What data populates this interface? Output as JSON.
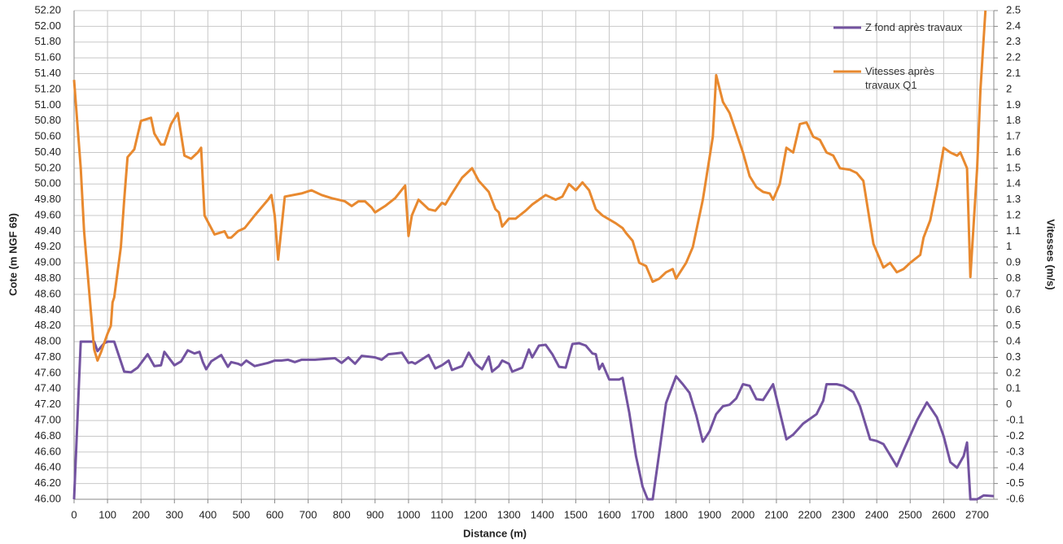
{
  "chart_data": {
    "type": "line",
    "xlabel": "Distance (m)",
    "ylabel": "Cote (m NGF 69)",
    "y2label": "Vitesses (m/s)",
    "xlim": [
      0,
      2750
    ],
    "xticks": [
      0,
      100,
      200,
      300,
      400,
      500,
      600,
      700,
      800,
      900,
      1000,
      1100,
      1200,
      1300,
      1400,
      1500,
      1600,
      1700,
      1800,
      1900,
      2000,
      2100,
      2200,
      2300,
      2400,
      2500,
      2600,
      2700
    ],
    "ylim": [
      46,
      52.2
    ],
    "yticks": [
      {
        "value": 46,
        "label": "46.00"
      },
      {
        "value": 46.2,
        "label": "46.20"
      },
      {
        "value": 46.4,
        "label": "46.40"
      },
      {
        "value": 46.6,
        "label": "46.60"
      },
      {
        "value": 46.8,
        "label": "46.80"
      },
      {
        "value": 47,
        "label": "47.00"
      },
      {
        "value": 47.2,
        "label": "47.20"
      },
      {
        "value": 47.4,
        "label": "47.40"
      },
      {
        "value": 47.6,
        "label": "47.60"
      },
      {
        "value": 47.8,
        "label": "47.80"
      },
      {
        "value": 48,
        "label": "48.00"
      },
      {
        "value": 48.2,
        "label": "48.20"
      },
      {
        "value": 48.4,
        "label": "48.40"
      },
      {
        "value": 48.6,
        "label": "48.60"
      },
      {
        "value": 48.8,
        "label": "48.80"
      },
      {
        "value": 49,
        "label": "49.00"
      },
      {
        "value": 49.2,
        "label": "49.20"
      },
      {
        "value": 49.4,
        "label": "49.40"
      },
      {
        "value": 49.6,
        "label": "49.60"
      },
      {
        "value": 49.8,
        "label": "49.80"
      },
      {
        "value": 50,
        "label": "50.00"
      },
      {
        "value": 50.2,
        "label": "50.20"
      },
      {
        "value": 50.4,
        "label": "50.40"
      },
      {
        "value": 50.6,
        "label": "50.60"
      },
      {
        "value": 50.8,
        "label": "50.80"
      },
      {
        "value": 51,
        "label": "51.00"
      },
      {
        "value": 51.2,
        "label": "51.20"
      },
      {
        "value": 51.4,
        "label": "51.40"
      },
      {
        "value": 51.6,
        "label": "51.60"
      },
      {
        "value": 51.8,
        "label": "51.80"
      },
      {
        "value": 52,
        "label": "52.00"
      },
      {
        "value": 52.2,
        "label": "52.20"
      }
    ],
    "y2lim": [
      -0.6,
      2.5
    ],
    "y2ticks": [
      -0.6,
      -0.5,
      -0.4,
      -0.3,
      -0.2,
      -0.1,
      0,
      0.1,
      0.2,
      0.3,
      0.4,
      0.5,
      0.6,
      0.7,
      0.8,
      0.9,
      1,
      1.1,
      1.2,
      1.3,
      1.4,
      1.5,
      1.6,
      1.7,
      1.8,
      1.9,
      2,
      2.1,
      2.2,
      2.3,
      2.4,
      2.5
    ],
    "grid": true,
    "series": [
      {
        "name": "Z fond après travaux",
        "color": "#7353a0",
        "axis": "y",
        "x": [
          0,
          20,
          60,
          70,
          90,
          100,
          120,
          150,
          170,
          190,
          220,
          240,
          260,
          270,
          300,
          320,
          340,
          360,
          375,
          385,
          395,
          410,
          440,
          460,
          470,
          490,
          500,
          515,
          540,
          580,
          600,
          620,
          640,
          660,
          680,
          720,
          780,
          800,
          820,
          840,
          860,
          900,
          920,
          940,
          960,
          980,
          1000,
          1010,
          1020,
          1060,
          1080,
          1100,
          1120,
          1130,
          1160,
          1180,
          1200,
          1220,
          1240,
          1250,
          1270,
          1280,
          1300,
          1310,
          1340,
          1360,
          1370,
          1390,
          1410,
          1430,
          1450,
          1470,
          1490,
          1510,
          1530,
          1550,
          1560,
          1570,
          1580,
          1600,
          1630,
          1640,
          1660,
          1680,
          1700,
          1715,
          1730,
          1750,
          1770,
          1800,
          1820,
          1840,
          1860,
          1880,
          1900,
          1920,
          1940,
          1960,
          1980,
          2000,
          2020,
          2040,
          2060,
          2090,
          2130,
          2150,
          2180,
          2200,
          2220,
          2240,
          2250,
          2280,
          2300,
          2330,
          2350,
          2380,
          2400,
          2420,
          2460,
          2480,
          2520,
          2550,
          2580,
          2600,
          2620,
          2640,
          2660,
          2670,
          2680,
          2700,
          2720,
          2750
        ],
        "values": [
          46.0,
          48.0,
          48.0,
          47.88,
          47.98,
          48.0,
          48.0,
          47.62,
          47.61,
          47.67,
          47.84,
          47.69,
          47.7,
          47.87,
          47.7,
          47.75,
          47.89,
          47.85,
          47.87,
          47.74,
          47.65,
          47.75,
          47.83,
          47.68,
          47.74,
          47.72,
          47.7,
          47.76,
          47.69,
          47.73,
          47.76,
          47.76,
          47.77,
          47.74,
          47.77,
          47.77,
          47.79,
          47.73,
          47.8,
          47.72,
          47.82,
          47.8,
          47.77,
          47.84,
          47.85,
          47.86,
          47.73,
          47.74,
          47.72,
          47.83,
          47.66,
          47.7,
          47.76,
          47.64,
          47.69,
          47.86,
          47.72,
          47.65,
          47.81,
          47.62,
          47.69,
          47.76,
          47.72,
          47.62,
          47.67,
          47.9,
          47.8,
          47.95,
          47.96,
          47.84,
          47.68,
          47.67,
          47.97,
          47.98,
          47.95,
          47.85,
          47.84,
          47.65,
          47.72,
          47.52,
          47.52,
          47.54,
          47.1,
          46.55,
          46.16,
          46.0,
          46.0,
          46.6,
          47.22,
          47.56,
          47.46,
          47.35,
          47.07,
          46.73,
          46.86,
          47.08,
          47.18,
          47.2,
          47.28,
          47.46,
          47.44,
          47.27,
          47.26,
          47.46,
          46.76,
          46.82,
          46.96,
          47.02,
          47.08,
          47.25,
          47.46,
          47.46,
          47.44,
          47.36,
          47.18,
          46.76,
          46.74,
          46.7,
          46.42,
          46.62,
          47.0,
          47.23,
          47.04,
          46.8,
          46.47,
          46.4,
          46.55,
          46.72,
          46.0,
          46.0,
          46.05,
          46.04
        ]
      },
      {
        "name": "Vitesses après travaux Q1",
        "color": "#e8892f",
        "axis": "y2",
        "x": [
          0,
          20,
          30,
          50,
          60,
          70,
          80,
          100,
          110,
          115,
          120,
          140,
          150,
          160,
          180,
          200,
          230,
          240,
          260,
          270,
          290,
          310,
          330,
          350,
          370,
          380,
          390,
          420,
          450,
          460,
          470,
          490,
          510,
          540,
          580,
          590,
          600,
          610,
          630,
          680,
          710,
          740,
          770,
          810,
          830,
          850,
          870,
          890,
          900,
          930,
          960,
          990,
          1000,
          1010,
          1030,
          1060,
          1080,
          1100,
          1110,
          1130,
          1160,
          1190,
          1210,
          1240,
          1260,
          1270,
          1280,
          1300,
          1320,
          1350,
          1370,
          1390,
          1410,
          1440,
          1460,
          1480,
          1500,
          1520,
          1540,
          1560,
          1580,
          1620,
          1640,
          1650,
          1670,
          1690,
          1710,
          1730,
          1750,
          1770,
          1790,
          1800,
          1830,
          1850,
          1880,
          1910,
          1920,
          1940,
          1960,
          2000,
          2020,
          2040,
          2060,
          2080,
          2090,
          2110,
          2130,
          2150,
          2170,
          2190,
          2210,
          2230,
          2250,
          2270,
          2290,
          2320,
          2340,
          2360,
          2390,
          2420,
          2440,
          2460,
          2480,
          2500,
          2530,
          2540,
          2560,
          2580,
          2600,
          2620,
          2640,
          2650,
          2670,
          2680,
          2700,
          2710,
          2725
        ],
        "values": [
          2.06,
          1.5,
          1.1,
          0.6,
          0.35,
          0.28,
          0.33,
          0.45,
          0.5,
          0.65,
          0.68,
          1.0,
          1.3,
          1.57,
          1.62,
          1.8,
          1.82,
          1.72,
          1.65,
          1.65,
          1.78,
          1.85,
          1.58,
          1.56,
          1.6,
          1.63,
          1.2,
          1.08,
          1.1,
          1.06,
          1.06,
          1.1,
          1.12,
          1.2,
          1.3,
          1.33,
          1.2,
          0.92,
          1.32,
          1.34,
          1.36,
          1.33,
          1.31,
          1.29,
          1.26,
          1.29,
          1.29,
          1.25,
          1.22,
          1.26,
          1.31,
          1.39,
          1.07,
          1.2,
          1.3,
          1.24,
          1.23,
          1.28,
          1.27,
          1.34,
          1.44,
          1.5,
          1.42,
          1.35,
          1.24,
          1.22,
          1.13,
          1.18,
          1.18,
          1.23,
          1.27,
          1.3,
          1.33,
          1.3,
          1.32,
          1.4,
          1.36,
          1.41,
          1.36,
          1.24,
          1.2,
          1.15,
          1.12,
          1.09,
          1.04,
          0.9,
          0.88,
          0.78,
          0.8,
          0.84,
          0.86,
          0.8,
          0.9,
          1.0,
          1.3,
          1.7,
          2.09,
          1.92,
          1.85,
          1.6,
          1.45,
          1.38,
          1.35,
          1.34,
          1.3,
          1.4,
          1.63,
          1.6,
          1.78,
          1.79,
          1.7,
          1.68,
          1.6,
          1.58,
          1.5,
          1.49,
          1.47,
          1.42,
          1.02,
          0.87,
          0.9,
          0.84,
          0.86,
          0.9,
          0.95,
          1.06,
          1.17,
          1.38,
          1.63,
          1.6,
          1.58,
          1.6,
          1.5,
          0.81,
          1.5,
          2.0,
          2.5
        ]
      }
    ]
  }
}
